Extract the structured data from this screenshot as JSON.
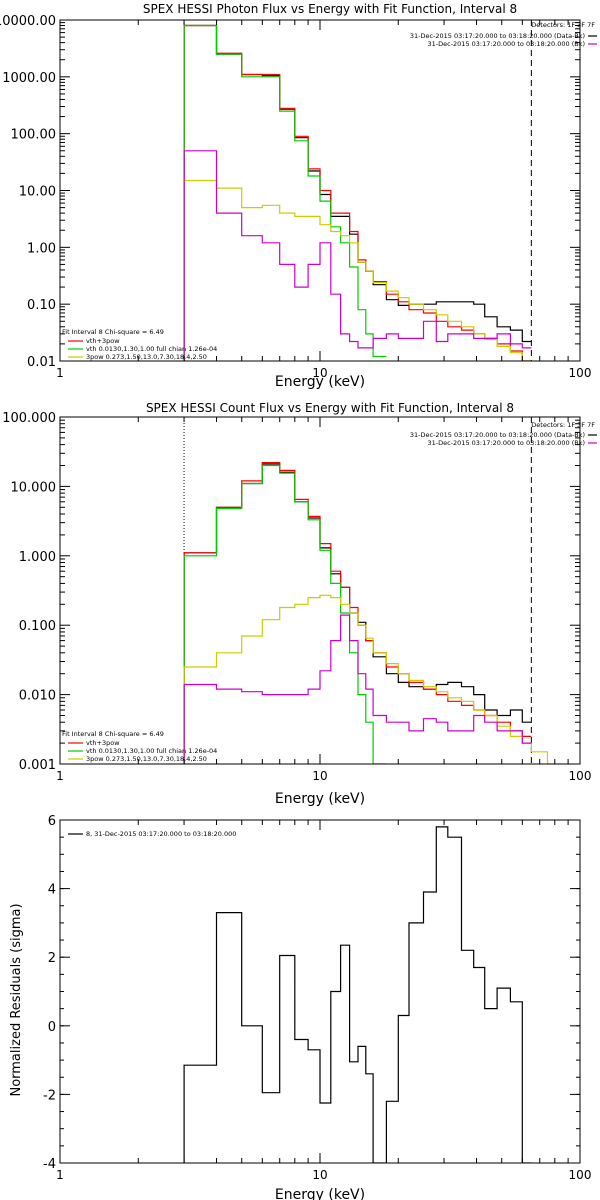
{
  "chart_data": [
    {
      "type": "line",
      "title": "SPEX HESSI Photon Flux vs Energy with Fit Function, Interval 8",
      "xlabel": "Energy (keV)",
      "ylabel": "",
      "xscale": "log",
      "yscale": "log",
      "xlim": [
        1,
        100
      ],
      "ylim": [
        0.01,
        10000
      ],
      "x_ticks": [
        1,
        10,
        100
      ],
      "x_tick_labels": [
        "1",
        "10",
        "100"
      ],
      "y_ticks": [
        0.01,
        0.1,
        1,
        10,
        100,
        1000,
        10000
      ],
      "y_tick_labels": [
        "0.01",
        "0.10",
        "1.00",
        "10.00",
        "100.00",
        "1000.00",
        "10000.00"
      ],
      "vlines": [
        {
          "x": 3,
          "style": "dotted"
        },
        {
          "x": 65,
          "style": "dashed"
        }
      ],
      "legend_right": {
        "title": "Detectors: 1F 3F 7F",
        "entries": [
          {
            "text": "31-Dec-2015 03:17:20.000 to 03:18:20.000 (Data-Bk)",
            "color": "#000000"
          },
          {
            "text": "31-Dec-2015 03:17:20.000 to 03:18:20.000 (Bk)",
            "color": "#cc00cc"
          }
        ]
      },
      "legend_left": {
        "title": "Fit Interval 8   Chi-square = 6.49",
        "entries": [
          {
            "text": "vth+3pow",
            "color": "#ff0000"
          },
          {
            "text": "vth 0.0130,1.30,1.00  full chian 1.26e-04",
            "color": "#00cc00"
          },
          {
            "text": "3pow 0.273,1.50,13.0,7.30,18.4,2.50",
            "color": "#cccc00"
          }
        ]
      },
      "bin_edges": [
        3,
        4,
        5,
        6,
        7,
        8,
        9,
        10,
        11,
        12,
        13,
        14,
        15,
        16,
        18,
        20,
        22,
        25,
        28,
        31,
        35,
        39,
        43,
        48,
        54,
        60,
        65
      ],
      "series": [
        {
          "color": "#000000",
          "values": [
            8000,
            2500,
            1100,
            1050,
            270,
            85,
            22,
            8.5,
            3.5,
            3.5,
            1.7,
            0.55,
            0.38,
            0.22,
            0.12,
            0.095,
            0.1,
            0.1,
            0.11,
            0.11,
            0.11,
            0.1,
            0.06,
            0.04,
            0.035,
            0.022
          ]
        },
        {
          "color": "#ff0000",
          "values": [
            8000,
            2600,
            1100,
            1100,
            280,
            90,
            24,
            10,
            4,
            4,
            1.9,
            0.6,
            0.38,
            0.25,
            0.15,
            0.11,
            0.08,
            0.07,
            0.05,
            0.04,
            0.035,
            0.03,
            0.025,
            0.02,
            0.015,
            0.01
          ]
        },
        {
          "color": "#00cc00",
          "values": [
            8000,
            2500,
            1000,
            1000,
            250,
            75,
            18,
            6.5,
            2.3,
            1.2,
            0.45,
            0.08,
            0.03,
            0.012
          ]
        },
        {
          "color": "#cccc00",
          "values": [
            15,
            11,
            5,
            5.5,
            4,
            3.5,
            3.5,
            2.5,
            1.9,
            1.6,
            1.2,
            0.55,
            0.38,
            0.24,
            0.17,
            0.13,
            0.1,
            0.08,
            0.065,
            0.05,
            0.04,
            0.03,
            0.024,
            0.018,
            0.014,
            0.01
          ]
        },
        {
          "color": "#cc00cc",
          "values": [
            50,
            4,
            1.6,
            1.2,
            0.5,
            0.2,
            0.5,
            1.2,
            0.15,
            0.03,
            0.022,
            0.017,
            0.017,
            0.025,
            0.03,
            0.025,
            0.025,
            0.05,
            0.022,
            0.03,
            0.03,
            0.025,
            0.025,
            0.03,
            0.02,
            0.017
          ]
        }
      ]
    },
    {
      "type": "line",
      "title": "SPEX HESSI Count Flux vs Energy with Fit Function, Interval 8",
      "xlabel": "Energy (keV)",
      "ylabel": "",
      "xscale": "log",
      "yscale": "log",
      "xlim": [
        1,
        100
      ],
      "ylim": [
        0.001,
        100
      ],
      "x_ticks": [
        1,
        10,
        100
      ],
      "x_tick_labels": [
        "1",
        "10",
        "100"
      ],
      "y_ticks": [
        0.001,
        0.01,
        0.1,
        1,
        10,
        100
      ],
      "y_tick_labels": [
        "0.001",
        "0.010",
        "0.100",
        "1.000",
        "10.000",
        "100.000"
      ],
      "vlines": [
        {
          "x": 3,
          "style": "dotted"
        },
        {
          "x": 65,
          "style": "dashed"
        }
      ],
      "legend_right": {
        "title": "Detectors: 1F 3F 7F",
        "entries": [
          {
            "text": "31-Dec-2015 03:17:20.000 to 03:18:20.000 (Data-Bk)",
            "color": "#000000"
          },
          {
            "text": "31-Dec-2015 03:17:20.000 to 03:18:20.000 (Bk)",
            "color": "#cc00cc"
          }
        ]
      },
      "legend_left": {
        "title": "Fit Interval 8   Chi-square = 6.49",
        "entries": [
          {
            "text": "vth+3pow",
            "color": "#ff0000"
          },
          {
            "text": "vth 0.0130,1.30,1.00  full chian 1.26e-04",
            "color": "#00cc00"
          },
          {
            "text": "3pow 0.273,1.50,13.0,7.30,18.4,2.50",
            "color": "#cccc00"
          }
        ]
      },
      "bin_edges": [
        3,
        4,
        5,
        6,
        7,
        8,
        9,
        10,
        11,
        12,
        13,
        14,
        15,
        16,
        18,
        20,
        22,
        25,
        28,
        31,
        35,
        39,
        43,
        48,
        54,
        60,
        65,
        75,
        85
      ],
      "series": [
        {
          "color": "#000000",
          "values": [
            1.1,
            5,
            11,
            21,
            16,
            6,
            3.5,
            1.3,
            0.55,
            0.35,
            0.15,
            0.11,
            0.06,
            0.035,
            0.02,
            0.015,
            0.013,
            0.012,
            0.014,
            0.015,
            0.013,
            0.01,
            0.006,
            0.005,
            0.006,
            0.004
          ]
        },
        {
          "color": "#ff0000",
          "values": [
            1.1,
            5,
            12,
            22,
            17,
            6.5,
            3.7,
            1.5,
            0.6,
            0.35,
            0.18,
            0.1,
            0.06,
            0.04,
            0.025,
            0.02,
            0.015,
            0.012,
            0.01,
            0.008,
            0.007,
            0.006,
            0.005,
            0.004,
            0.003,
            0.0025
          ]
        },
        {
          "color": "#00cc00",
          "values": [
            1,
            4.8,
            11,
            20,
            15.5,
            6,
            3.3,
            1.2,
            0.4,
            0.15,
            0.04,
            0.01,
            0.004,
            0.001
          ]
        },
        {
          "color": "#cccc00",
          "values": [
            0.025,
            0.04,
            0.07,
            0.12,
            0.18,
            0.2,
            0.25,
            0.27,
            0.25,
            0.2,
            0.15,
            0.1,
            0.065,
            0.04,
            0.028,
            0.02,
            0.016,
            0.013,
            0.011,
            0.009,
            0.008,
            0.006,
            0.005,
            0.0035,
            0.0025,
            0.002,
            0.0015,
            0.001
          ]
        },
        {
          "color": "#cc00cc",
          "values": [
            0.014,
            0.012,
            0.011,
            0.01,
            0.01,
            0.01,
            0.012,
            0.022,
            0.06,
            0.14,
            0.06,
            0.02,
            0.012,
            0.005,
            0.004,
            0.004,
            0.003,
            0.0045,
            0.004,
            0.003,
            0.003,
            0.005,
            0.004,
            0.003,
            0.003,
            0.002
          ]
        }
      ]
    },
    {
      "type": "line",
      "title": "",
      "xlabel": "Energy (keV)",
      "ylabel": "Normalized Residuals (sigma)",
      "xscale": "log",
      "yscale": "linear",
      "xlim": [
        1,
        100
      ],
      "ylim": [
        -4,
        6
      ],
      "x_ticks": [
        1,
        10,
        100
      ],
      "x_tick_labels": [
        "1",
        "10",
        "100"
      ],
      "y_ticks": [
        -4,
        -2,
        0,
        2,
        4,
        6
      ],
      "y_tick_labels": [
        "-4",
        "-2",
        "0",
        "2",
        "4",
        "6"
      ],
      "legend": {
        "entries": [
          {
            "text": "8, 31-Dec-2015 03:17:20.000 to 03:18:20.000",
            "color": "#000000"
          }
        ]
      },
      "bin_edges": [
        3,
        4,
        5,
        6,
        7,
        8,
        9,
        10,
        11,
        12,
        13,
        14,
        15,
        16,
        18,
        20,
        22,
        25,
        28,
        31,
        35,
        39,
        43,
        48,
        54,
        60,
        65
      ],
      "series": [
        {
          "color": "#000000",
          "values": [
            -1.15,
            3.3,
            0,
            -1.95,
            2.05,
            -0.4,
            -0.7,
            -2.25,
            1.0,
            2.35,
            -1.05,
            -0.6,
            -1.4,
            -4.0,
            -2.2,
            0.3,
            3.0,
            3.9,
            5.8,
            5.5,
            2.2,
            1.7,
            0.5,
            1.1,
            0.7,
            -4.0
          ]
        }
      ]
    }
  ]
}
